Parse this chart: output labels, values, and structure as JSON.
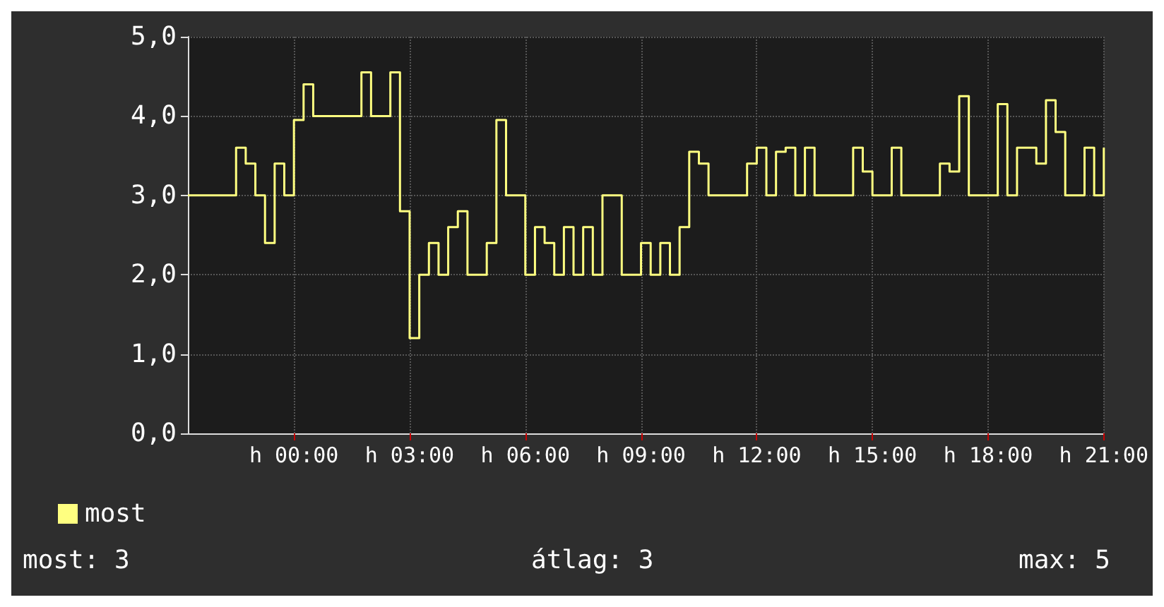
{
  "chart_data": {
    "type": "step",
    "categories": [
      null,
      null,
      null,
      null,
      null,
      null,
      null,
      null,
      null,
      null,
      null,
      "h 00:00",
      null,
      null,
      null,
      null,
      null,
      null,
      null,
      null,
      null,
      null,
      null,
      "h 03:00",
      null,
      null,
      null,
      null,
      null,
      null,
      null,
      null,
      null,
      null,
      null,
      "h 06:00",
      null,
      null,
      null,
      null,
      null,
      null,
      null,
      null,
      null,
      null,
      null,
      "h 09:00",
      null,
      null,
      null,
      null,
      null,
      null,
      null,
      null,
      null,
      null,
      null,
      "h 12:00",
      null,
      null,
      null,
      null,
      null,
      null,
      null,
      null,
      null,
      null,
      null,
      "h 15:00",
      null,
      null,
      null,
      null,
      null,
      null,
      null,
      null,
      null,
      null,
      null,
      "h 18:00",
      null,
      null,
      null,
      null,
      null,
      null,
      null,
      null,
      null,
      null,
      null,
      "h 21:00"
    ],
    "series": [
      {
        "name": "most",
        "color": "#ffff80",
        "values": [
          3,
          3,
          3,
          3,
          3,
          3.6,
          3.4,
          3,
          2.4,
          3.4,
          3,
          3.95,
          4.4,
          4,
          4,
          4,
          4,
          4,
          4.55,
          4,
          4,
          4.55,
          2.8,
          1.2,
          2,
          2.4,
          2,
          2.6,
          2.8,
          2,
          2,
          2.4,
          3.95,
          3,
          3,
          2,
          2.6,
          2.4,
          2,
          2.6,
          2,
          2.6,
          2,
          3,
          3,
          2,
          2,
          2.4,
          2,
          2.4,
          2,
          2.6,
          3.55,
          3.4,
          3,
          3,
          3,
          3,
          3.4,
          3.6,
          3,
          3.55,
          3.6,
          3,
          3.6,
          3,
          3,
          3,
          3,
          3.6,
          3.3,
          3,
          3,
          3.6,
          3,
          3,
          3,
          3,
          3.4,
          3.3,
          4.25,
          3,
          3,
          3,
          4.15,
          3,
          3.6,
          3.6,
          3.4,
          4.2,
          3.8,
          3,
          3,
          3.6,
          3,
          3.6
        ]
      }
    ],
    "ylim": [
      0,
      5
    ],
    "yticks": [
      {
        "value": 0,
        "label": "0,0"
      },
      {
        "value": 1,
        "label": "1,0"
      },
      {
        "value": 2,
        "label": "2,0"
      },
      {
        "value": 3,
        "label": "3,0"
      },
      {
        "value": 4,
        "label": "4,0"
      },
      {
        "value": 5,
        "label": "5,0"
      }
    ],
    "grid": true,
    "legend": "bottom left",
    "annotations": [
      "most: 3",
      "átlag: 3",
      "max: 5"
    ]
  }
}
